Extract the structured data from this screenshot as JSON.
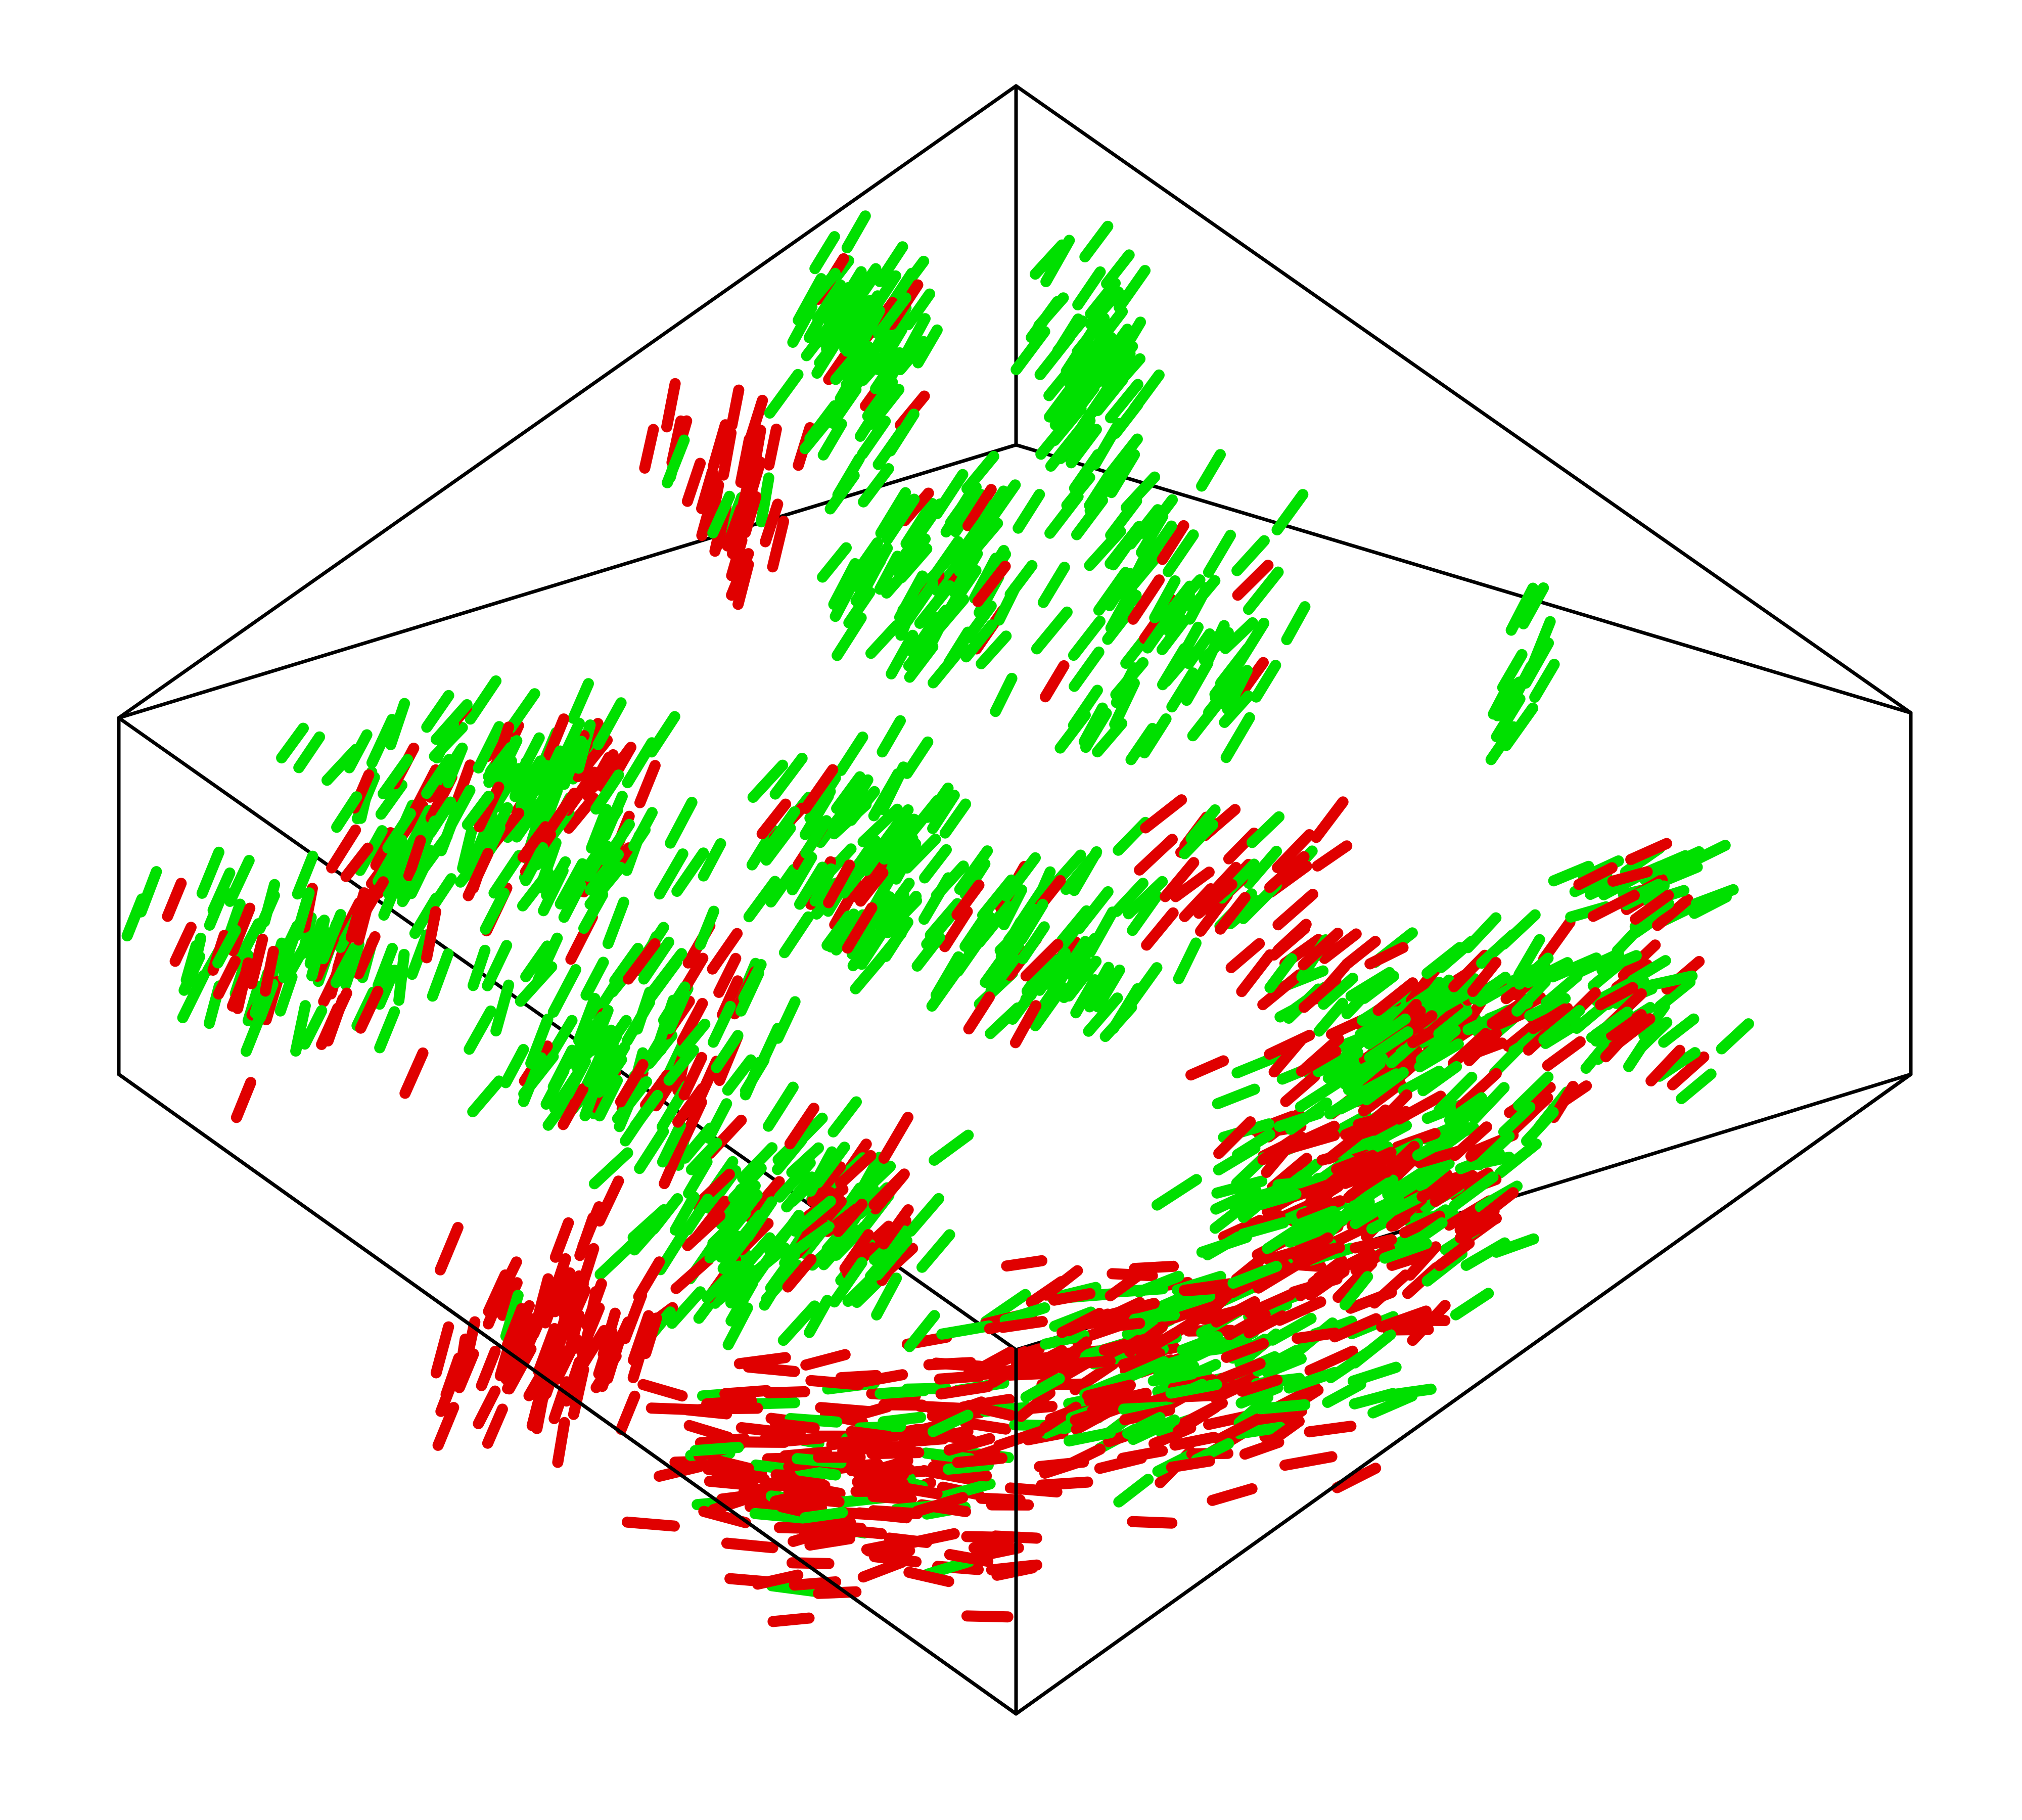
{
  "scene": {
    "background_color": "#ffffff",
    "box_edge_color": "#000000",
    "rod_types": [
      {
        "name": "red",
        "color": "#e00000",
        "share_percent": 42
      },
      {
        "name": "green",
        "color": "#00e000",
        "share_percent": 58
      }
    ],
    "visible_text": "none"
  }
}
